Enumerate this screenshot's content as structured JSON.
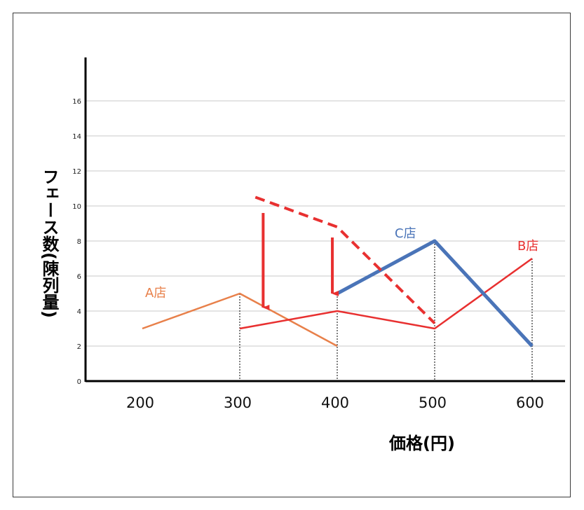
{
  "chart_data": {
    "type": "line",
    "xlabel": "価格(円)",
    "ylabel": "フェース数(陳列量)",
    "x_ticks": [
      200,
      300,
      400,
      500,
      600
    ],
    "y_ticks": [
      0,
      2,
      4,
      6,
      8,
      10,
      12,
      14,
      16
    ],
    "xlim": [
      150,
      630
    ],
    "ylim": [
      0,
      18
    ],
    "grid": "horizontal",
    "series": [
      {
        "name": "A店",
        "color": "#e8804a",
        "width": 2.5,
        "style": "solid",
        "points": [
          [
            200,
            3
          ],
          [
            300,
            5
          ],
          [
            400,
            2
          ]
        ]
      },
      {
        "name": "B店",
        "color": "#e83030",
        "width": 2.5,
        "style": "solid",
        "points": [
          [
            300,
            3
          ],
          [
            400,
            4
          ],
          [
            500,
            3
          ],
          [
            600,
            7
          ]
        ]
      },
      {
        "name": "C店",
        "color": "#4a74b8",
        "width": 5,
        "style": "solid",
        "points": [
          [
            400,
            5
          ],
          [
            500,
            8
          ],
          [
            600,
            2
          ]
        ]
      }
    ],
    "annotation_line": {
      "color": "#e83030",
      "style": "dashed",
      "points": [
        [
          316,
          10.5
        ],
        [
          400,
          8.8
        ],
        [
          500,
          3.3
        ]
      ]
    },
    "arrows": [
      {
        "color": "#e83030",
        "x": 324,
        "y_from": 9.6,
        "y_to": 4.2
      },
      {
        "color": "#e83030",
        "x": 395,
        "y_from": 8.2,
        "y_to": 5.0
      }
    ],
    "drop_lines": {
      "color": "#000000",
      "style": "dotted",
      "x": [
        300,
        400,
        500,
        600
      ]
    }
  }
}
